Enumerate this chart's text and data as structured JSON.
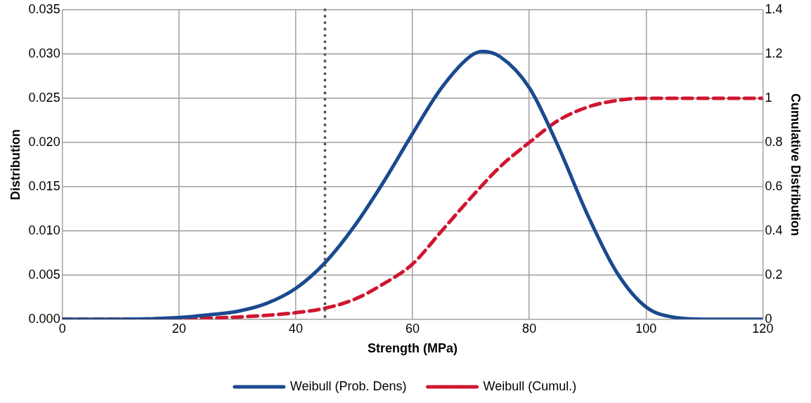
{
  "chart_data": {
    "type": "line",
    "xlabel": "Strength (MPa)",
    "ylabel": "Distribution",
    "y2label": "Cumulative Distribution",
    "xlim": [
      0,
      120
    ],
    "xticks": [
      0,
      20,
      40,
      60,
      80,
      100,
      120
    ],
    "ylim": [
      0,
      0.035
    ],
    "yticks": [
      {
        "value": 0,
        "label": "0.000"
      },
      {
        "value": 0.005,
        "label": "0.005"
      },
      {
        "value": 0.01,
        "label": "0.010"
      },
      {
        "value": 0.015,
        "label": "0.015"
      },
      {
        "value": 0.02,
        "label": "0.020"
      },
      {
        "value": 0.025,
        "label": "0.025"
      },
      {
        "value": 0.03,
        "label": "0.030"
      },
      {
        "value": 0.035,
        "label": "0.035"
      }
    ],
    "y2lim": [
      0,
      1.4
    ],
    "y2ticks": [
      0,
      0.2,
      0.4,
      0.6,
      0.8,
      1,
      1.2,
      1.4
    ],
    "grid": true,
    "legend": "bottom",
    "marker": "none",
    "ref_lines": [
      {
        "axis": "x",
        "value": 45,
        "color": "#595959",
        "line_style": "dotted"
      }
    ],
    "series": [
      {
        "name": "Weibull (Prob. Dens)",
        "color": "#1a4a8f",
        "line_style": "solid",
        "x": [
          0,
          10,
          20,
          25,
          30,
          35,
          40,
          45,
          50,
          55,
          60,
          65,
          70,
          72,
          75,
          80,
          85,
          90,
          95,
          100,
          105,
          110,
          120
        ],
        "values": [
          0,
          0,
          0.0002,
          0.0005,
          0.0009,
          0.0018,
          0.0035,
          0.0064,
          0.0105,
          0.0155,
          0.021,
          0.0262,
          0.0298,
          0.0303,
          0.0297,
          0.0262,
          0.0195,
          0.0118,
          0.0053,
          0.0014,
          0.0002,
          0,
          0
        ]
      },
      {
        "name": "Weibull (Cumul.)",
        "color": "#d0162f",
        "line_style": "dashed",
        "axis": "y2",
        "x": [
          0,
          20,
          30,
          40,
          45,
          50,
          55,
          60,
          65,
          70,
          75,
          80,
          85,
          90,
          95,
          100,
          120
        ],
        "values": [
          0,
          0.003,
          0.01,
          0.03,
          0.05,
          0.09,
          0.16,
          0.25,
          0.4,
          0.55,
          0.69,
          0.8,
          0.9,
          0.96,
          0.99,
          1,
          1
        ]
      }
    ]
  }
}
